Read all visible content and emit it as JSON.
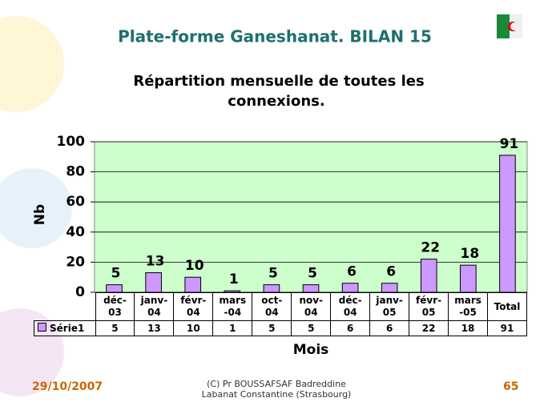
{
  "header": {
    "title": "Plate-forme Ganeshanat. BILAN 15"
  },
  "chart_data": {
    "type": "bar",
    "title": "Répartition mensuelle de toutes les connexions.",
    "y_label": "Nb",
    "x_label": "Mois",
    "categories": [
      "déc-03",
      "janv-04",
      "févr-04",
      "mars-04",
      "oct-04",
      "nov-04",
      "déc-04",
      "janv-05",
      "févr-05",
      "mars-05",
      "Total"
    ],
    "series": [
      {
        "name": "Série1",
        "color": "#cc99ff",
        "values": [
          5,
          13,
          10,
          1,
          5,
          5,
          6,
          6,
          22,
          18,
          91
        ]
      }
    ],
    "ylim": [
      0,
      100
    ],
    "yticks": [
      0,
      20,
      40,
      60,
      80,
      100
    ],
    "grid": true,
    "plot_background": "#ccffcc"
  },
  "footer": {
    "date": "29/10/2007",
    "credit": [
      "(C) Pr BOUSSAFSAF Badreddine",
      "Labanat Constantine (Strasbourg)"
    ],
    "page": "65"
  }
}
